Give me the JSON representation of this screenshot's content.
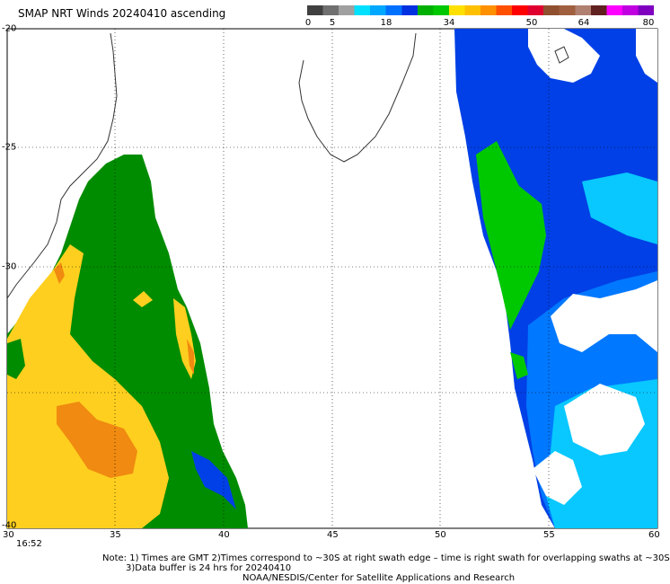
{
  "title": "SMAP NRT Winds 20240410 ascending",
  "time_label": "16:52",
  "color_scale": {
    "ticks": [
      "0",
      "5",
      "18",
      "34",
      "50",
      "64",
      "80"
    ],
    "colors": [
      "#404040",
      "#707070",
      "#a0a0a0",
      "#00e0ff",
      "#00a8ff",
      "#0070ff",
      "#0030e0",
      "#00b000",
      "#00c800",
      "#ffe000",
      "#ffc000",
      "#ff9000",
      "#ff5000",
      "#ff0000",
      "#e00030",
      "#905030",
      "#a06040",
      "#b08070",
      "#602020",
      "#ff00ff",
      "#c000e0",
      "#8000c0"
    ]
  },
  "axes": {
    "x_ticks": [
      "30",
      "35",
      "40",
      "45",
      "50",
      "55",
      "60"
    ],
    "y_ticks": [
      "-20",
      "-25",
      "-30",
      "-40"
    ]
  },
  "colors": {
    "green": "#008c00",
    "bright_green": "#00c800",
    "yellow": "#ffcf1f",
    "orange": "#f08a10",
    "blue_dark": "#0040e6",
    "blue_mid": "#0078ff",
    "cyan": "#08c8ff"
  },
  "notes": {
    "line1": "Note: 1) Times are GMT 2)Times correspond to ~30S at right swath edge – time is right swath for overlapping swaths at ~30S",
    "line2": "3)Data buffer is 24 hrs for 20240410",
    "line3": "NOAA/NESDIS/Center for Satellite Applications and Research"
  }
}
